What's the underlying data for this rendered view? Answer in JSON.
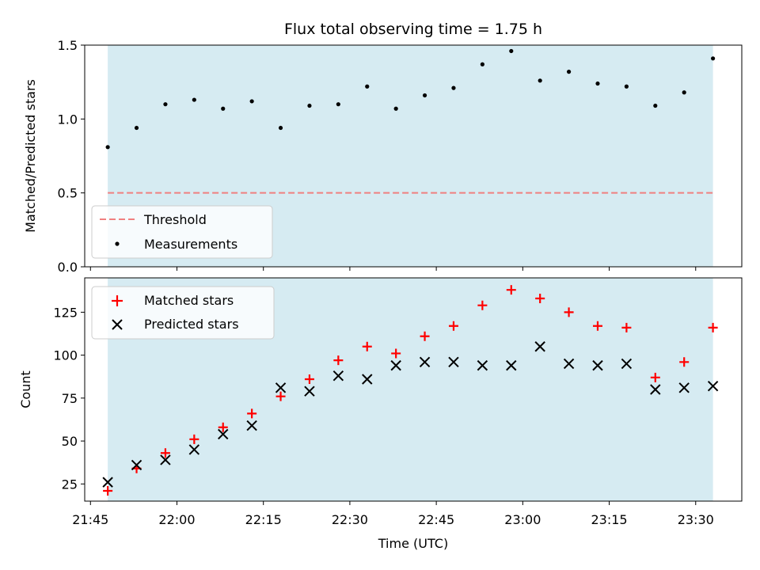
{
  "chart_data": [
    {
      "type": "scatter",
      "title": "Flux total observing time = 1.75 h",
      "xlabel": "",
      "ylabel": "Matched/Predicted stars",
      "ylim": [
        0,
        1.5
      ],
      "yticks": [
        0.0,
        0.5,
        1.0,
        1.5
      ],
      "ytick_labels": [
        "0.0",
        "0.5",
        "1.0",
        "1.5"
      ],
      "xlim": [
        "21:44",
        "23:38"
      ],
      "grid": false,
      "legend_position": "lower-left",
      "shaded_span": [
        "21:48",
        "23:33"
      ],
      "shaded_color": "#add8e6",
      "threshold": {
        "name": "Threshold",
        "value": 0.5,
        "color": "#f08080",
        "style": "dashed",
        "x_range": [
          "21:48",
          "23:33"
        ]
      },
      "series": [
        {
          "name": "Measurements",
          "color": "#000000",
          "marker": "dot",
          "x": [
            "21:48",
            "21:53",
            "21:58",
            "22:03",
            "22:08",
            "22:13",
            "22:18",
            "22:23",
            "22:28",
            "22:33",
            "22:38",
            "22:43",
            "22:48",
            "22:53",
            "22:58",
            "23:03",
            "23:08",
            "23:13",
            "23:18",
            "23:23",
            "23:28",
            "23:33"
          ],
          "y": [
            0.81,
            0.94,
            1.1,
            1.13,
            1.07,
            1.12,
            0.94,
            1.09,
            1.1,
            1.22,
            1.07,
            1.16,
            1.21,
            1.37,
            1.46,
            1.26,
            1.32,
            1.24,
            1.22,
            1.09,
            1.18,
            1.41
          ]
        }
      ]
    },
    {
      "type": "scatter",
      "title": "",
      "xlabel": "Time (UTC)",
      "ylabel": "Count",
      "ylim": [
        15,
        145
      ],
      "yticks": [
        25,
        50,
        75,
        100,
        125
      ],
      "ytick_labels": [
        "25",
        "50",
        "75",
        "100",
        "125"
      ],
      "xlim": [
        "21:44",
        "23:38"
      ],
      "xticks": [
        "21:45",
        "22:00",
        "22:15",
        "22:30",
        "22:45",
        "23:00",
        "23:15",
        "23:30"
      ],
      "xtick_labels": [
        "21:45",
        "22:00",
        "22:15",
        "22:30",
        "22:45",
        "23:00",
        "23:15",
        "23:30"
      ],
      "grid": false,
      "legend_position": "top-left",
      "shaded_span": [
        "21:48",
        "23:33"
      ],
      "shaded_color": "#add8e6",
      "series": [
        {
          "name": "Matched stars",
          "color": "#ff0000",
          "marker": "plus",
          "x": [
            "21:48",
            "21:53",
            "21:58",
            "22:03",
            "22:08",
            "22:13",
            "22:18",
            "22:23",
            "22:28",
            "22:33",
            "22:38",
            "22:43",
            "22:48",
            "22:53",
            "22:58",
            "23:03",
            "23:08",
            "23:13",
            "23:18",
            "23:23",
            "23:28",
            "23:33"
          ],
          "y": [
            21,
            34,
            43,
            51,
            58,
            66,
            76,
            86,
            97,
            105,
            101,
            111,
            117,
            129,
            138,
            133,
            125,
            117,
            116,
            87,
            96,
            116
          ]
        },
        {
          "name": "Predicted stars",
          "color": "#000000",
          "marker": "x",
          "x": [
            "21:48",
            "21:53",
            "21:58",
            "22:03",
            "22:08",
            "22:13",
            "22:18",
            "22:23",
            "22:28",
            "22:33",
            "22:38",
            "22:43",
            "22:48",
            "22:53",
            "22:58",
            "23:03",
            "23:08",
            "23:13",
            "23:18",
            "23:23",
            "23:28",
            "23:33"
          ],
          "y": [
            26,
            36,
            39,
            45,
            54,
            59,
            81,
            79,
            88,
            86,
            94,
            96,
            96,
            94,
            94,
            105,
            95,
            94,
            95,
            80,
            81,
            82
          ]
        }
      ]
    }
  ]
}
